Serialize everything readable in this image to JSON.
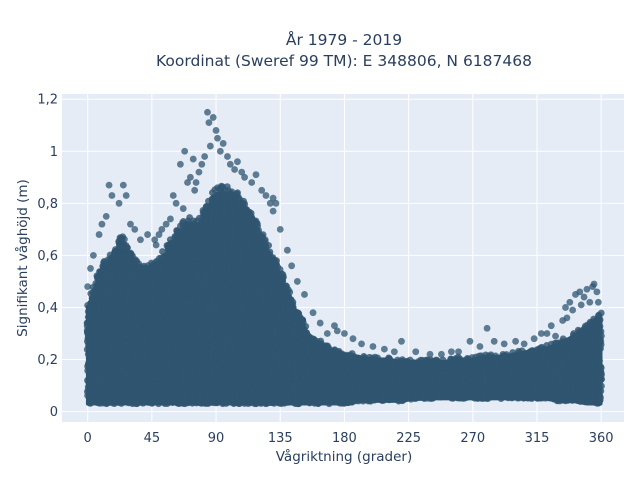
{
  "chart_data": {
    "type": "scatter",
    "title_line1": "År 1979 - 2019",
    "title_line2": "Koordinat (Sweref 99 TM): E 348806, N 6187468",
    "xlabel": "Vågriktning (grader)",
    "ylabel": "Signifikant våghöjd (m)",
    "xlim": [
      -18,
      376
    ],
    "ylim": [
      -0.04,
      1.22
    ],
    "x_ticks": [
      0,
      45,
      90,
      135,
      180,
      225,
      270,
      315,
      360
    ],
    "x_tick_labels": [
      "0",
      "45",
      "90",
      "135",
      "180",
      "225",
      "270",
      "315",
      "360"
    ],
    "y_ticks": [
      0,
      0.2,
      0.4,
      0.6,
      0.8,
      1,
      1.2
    ],
    "y_tick_labels": [
      "0",
      "0,2",
      "0,4",
      "0,6",
      "0,8",
      "1",
      "1,2"
    ],
    "grid": true,
    "marker_color": "#2f5570",
    "background_color": "#e5ecf6",
    "envelope": {
      "direction": [
        0,
        5,
        10,
        15,
        20,
        25,
        30,
        35,
        40,
        45,
        50,
        55,
        60,
        65,
        70,
        75,
        80,
        85,
        90,
        95,
        100,
        105,
        110,
        115,
        120,
        125,
        130,
        135,
        140,
        145,
        150,
        155,
        160,
        170,
        180,
        190,
        200,
        210,
        220,
        230,
        240,
        250,
        260,
        270,
        280,
        290,
        300,
        310,
        320,
        330,
        340,
        350,
        355,
        360
      ],
      "upper_height": [
        0.42,
        0.5,
        0.58,
        0.6,
        0.65,
        0.68,
        0.62,
        0.58,
        0.56,
        0.57,
        0.6,
        0.63,
        0.68,
        0.72,
        0.75,
        0.74,
        0.76,
        0.82,
        0.87,
        0.88,
        0.86,
        0.84,
        0.8,
        0.76,
        0.72,
        0.66,
        0.6,
        0.55,
        0.49,
        0.42,
        0.36,
        0.31,
        0.28,
        0.25,
        0.23,
        0.22,
        0.21,
        0.21,
        0.2,
        0.2,
        0.2,
        0.2,
        0.21,
        0.21,
        0.22,
        0.22,
        0.23,
        0.24,
        0.25,
        0.27,
        0.3,
        0.34,
        0.36,
        0.38
      ],
      "lower_height": [
        0.03,
        0.03,
        0.03,
        0.03,
        0.03,
        0.03,
        0.03,
        0.03,
        0.03,
        0.03,
        0.03,
        0.03,
        0.03,
        0.03,
        0.03,
        0.03,
        0.03,
        0.03,
        0.03,
        0.03,
        0.03,
        0.03,
        0.03,
        0.03,
        0.03,
        0.03,
        0.03,
        0.03,
        0.03,
        0.03,
        0.03,
        0.03,
        0.03,
        0.03,
        0.03,
        0.04,
        0.04,
        0.04,
        0.04,
        0.05,
        0.05,
        0.05,
        0.05,
        0.05,
        0.05,
        0.05,
        0.05,
        0.05,
        0.05,
        0.04,
        0.04,
        0.03,
        0.03,
        0.03
      ]
    },
    "outliers": [
      {
        "x": 15,
        "y": 0.87
      },
      {
        "x": 17,
        "y": 0.83
      },
      {
        "x": 22,
        "y": 0.8
      },
      {
        "x": 25,
        "y": 0.87
      },
      {
        "x": 27,
        "y": 0.83
      },
      {
        "x": 13,
        "y": 0.75
      },
      {
        "x": 10,
        "y": 0.72
      },
      {
        "x": 30,
        "y": 0.72
      },
      {
        "x": 8,
        "y": 0.68
      },
      {
        "x": 4,
        "y": 0.6
      },
      {
        "x": 2,
        "y": 0.55
      },
      {
        "x": 0,
        "y": 0.48
      },
      {
        "x": 33,
        "y": 0.7
      },
      {
        "x": 37,
        "y": 0.66
      },
      {
        "x": 42,
        "y": 0.68
      },
      {
        "x": 47,
        "y": 0.66
      },
      {
        "x": 50,
        "y": 0.68
      },
      {
        "x": 55,
        "y": 0.72
      },
      {
        "x": 58,
        "y": 0.74
      },
      {
        "x": 60,
        "y": 0.83
      },
      {
        "x": 65,
        "y": 0.95
      },
      {
        "x": 67,
        "y": 0.78
      },
      {
        "x": 68,
        "y": 1.0
      },
      {
        "x": 70,
        "y": 0.88
      },
      {
        "x": 72,
        "y": 0.9
      },
      {
        "x": 74,
        "y": 0.97
      },
      {
        "x": 75,
        "y": 0.85
      },
      {
        "x": 78,
        "y": 0.92
      },
      {
        "x": 80,
        "y": 0.95
      },
      {
        "x": 82,
        "y": 0.98
      },
      {
        "x": 84,
        "y": 1.15
      },
      {
        "x": 85,
        "y": 1.11
      },
      {
        "x": 86,
        "y": 1.02
      },
      {
        "x": 88,
        "y": 1.13
      },
      {
        "x": 90,
        "y": 1.08
      },
      {
        "x": 91,
        "y": 1.05
      },
      {
        "x": 93,
        "y": 1.0
      },
      {
        "x": 95,
        "y": 1.03
      },
      {
        "x": 98,
        "y": 0.98
      },
      {
        "x": 100,
        "y": 0.95
      },
      {
        "x": 103,
        "y": 0.93
      },
      {
        "x": 105,
        "y": 0.96
      },
      {
        "x": 110,
        "y": 0.9
      },
      {
        "x": 115,
        "y": 0.88
      },
      {
        "x": 118,
        "y": 0.91
      },
      {
        "x": 122,
        "y": 0.85
      },
      {
        "x": 125,
        "y": 0.83
      },
      {
        "x": 128,
        "y": 0.8
      },
      {
        "x": 130,
        "y": 0.77
      },
      {
        "x": 135,
        "y": 0.7
      },
      {
        "x": 140,
        "y": 0.62
      },
      {
        "x": 143,
        "y": 0.56
      },
      {
        "x": 147,
        "y": 0.5
      },
      {
        "x": 152,
        "y": 0.45
      },
      {
        "x": 158,
        "y": 0.38
      },
      {
        "x": 163,
        "y": 0.34
      },
      {
        "x": 168,
        "y": 0.3
      },
      {
        "x": 173,
        "y": 0.33
      },
      {
        "x": 175,
        "y": 0.31
      },
      {
        "x": 180,
        "y": 0.3
      },
      {
        "x": 186,
        "y": 0.28
      },
      {
        "x": 192,
        "y": 0.26
      },
      {
        "x": 200,
        "y": 0.25
      },
      {
        "x": 208,
        "y": 0.24
      },
      {
        "x": 215,
        "y": 0.23
      },
      {
        "x": 220,
        "y": 0.27
      },
      {
        "x": 230,
        "y": 0.23
      },
      {
        "x": 240,
        "y": 0.22
      },
      {
        "x": 248,
        "y": 0.22
      },
      {
        "x": 255,
        "y": 0.23
      },
      {
        "x": 260,
        "y": 0.23
      },
      {
        "x": 268,
        "y": 0.27
      },
      {
        "x": 275,
        "y": 0.25
      },
      {
        "x": 280,
        "y": 0.32
      },
      {
        "x": 285,
        "y": 0.27
      },
      {
        "x": 292,
        "y": 0.26
      },
      {
        "x": 300,
        "y": 0.27
      },
      {
        "x": 306,
        "y": 0.26
      },
      {
        "x": 313,
        "y": 0.28
      },
      {
        "x": 318,
        "y": 0.3
      },
      {
        "x": 322,
        "y": 0.3
      },
      {
        "x": 325,
        "y": 0.33
      },
      {
        "x": 328,
        "y": 0.29
      },
      {
        "x": 333,
        "y": 0.35
      },
      {
        "x": 335,
        "y": 0.4
      },
      {
        "x": 338,
        "y": 0.42
      },
      {
        "x": 342,
        "y": 0.45
      },
      {
        "x": 345,
        "y": 0.46
      },
      {
        "x": 348,
        "y": 0.44
      },
      {
        "x": 350,
        "y": 0.47
      },
      {
        "x": 352,
        "y": 0.42
      },
      {
        "x": 354,
        "y": 0.48
      },
      {
        "x": 355,
        "y": 0.49
      },
      {
        "x": 357,
        "y": 0.46
      },
      {
        "x": 358,
        "y": 0.42
      },
      {
        "x": 336,
        "y": 0.36
      },
      {
        "x": 340,
        "y": 0.39
      },
      {
        "x": 346,
        "y": 0.41
      },
      {
        "x": 130,
        "y": 0.82
      },
      {
        "x": 132,
        "y": 0.8
      },
      {
        "x": 48,
        "y": 0.64
      },
      {
        "x": 52,
        "y": 0.7
      },
      {
        "x": 62,
        "y": 0.8
      },
      {
        "x": 76,
        "y": 0.88
      },
      {
        "x": 108,
        "y": 0.92
      }
    ]
  }
}
